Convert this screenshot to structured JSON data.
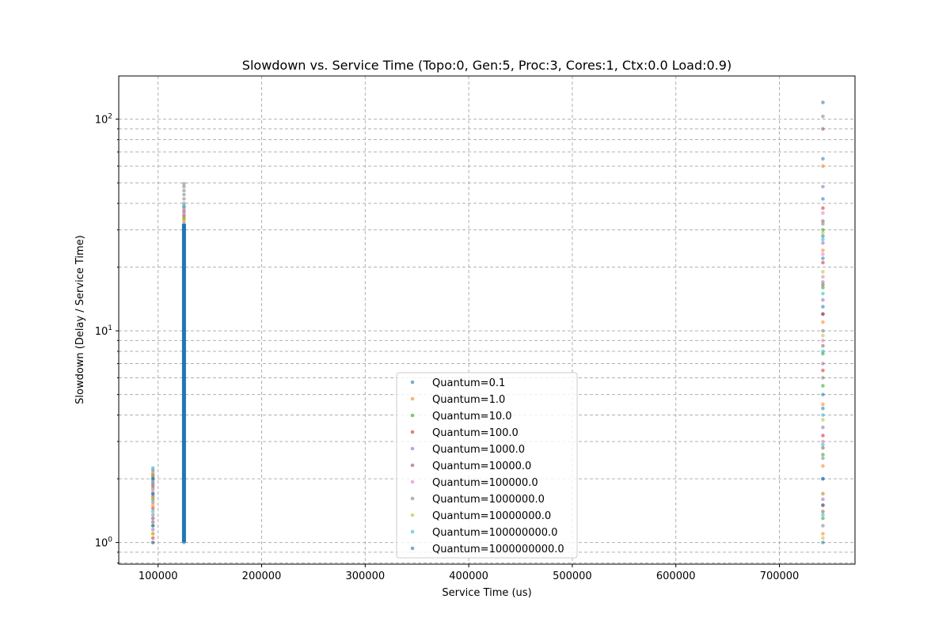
{
  "chart_data": {
    "type": "scatter",
    "title": "Slowdown vs. Service Time (Topo:0, Gen:5, Proc:3, Cores:1, Ctx:0.0 Load:0.9)",
    "xlabel": "Service Time (us)",
    "ylabel": "Slowdown (Delay / Service Time)",
    "xlim": [
      62000,
      773000
    ],
    "ylim": [
      0.79,
      160
    ],
    "yscale": "log",
    "grid": true,
    "legend_position": "lower-center",
    "x_ticks": [
      {
        "value": 100000,
        "label": "100000"
      },
      {
        "value": 200000,
        "label": "200000"
      },
      {
        "value": 300000,
        "label": "300000"
      },
      {
        "value": 400000,
        "label": "400000"
      },
      {
        "value": 500000,
        "label": "500000"
      },
      {
        "value": 600000,
        "label": "600000"
      },
      {
        "value": 700000,
        "label": "700000"
      }
    ],
    "y_ticks": [
      {
        "value": 1,
        "base": "10",
        "exp": "0"
      },
      {
        "value": 10,
        "base": "10",
        "exp": "1"
      },
      {
        "value": 100,
        "base": "10",
        "exp": "2"
      }
    ],
    "series": [
      {
        "name": "Quantum=0.1",
        "color": "#1f77b4",
        "points": [
          [
            95000,
            1.0
          ],
          [
            95000,
            1.3
          ],
          [
            95000,
            1.7
          ],
          [
            95000,
            2.1
          ],
          [
            125000,
            1.0
          ],
          [
            125000,
            3.0
          ],
          [
            125000,
            10.0
          ],
          [
            125000,
            30.0
          ],
          [
            742000,
            1.0
          ],
          [
            742000,
            2.0
          ],
          [
            742000,
            5.0
          ],
          [
            742000,
            12.0
          ],
          [
            742000,
            28.0
          ],
          [
            742000,
            65.0
          ],
          [
            742000,
            120.0
          ]
        ]
      },
      {
        "name": "Quantum=1.0",
        "color": "#ff7f0e",
        "points": [
          [
            95000,
            1.1
          ],
          [
            95000,
            1.5
          ],
          [
            95000,
            1.9
          ],
          [
            125000,
            33.0
          ],
          [
            742000,
            1.1
          ],
          [
            742000,
            2.3
          ],
          [
            742000,
            4.5
          ],
          [
            742000,
            11.0
          ],
          [
            742000,
            24.0
          ],
          [
            742000,
            60.0
          ]
        ]
      },
      {
        "name": "Quantum=10.0",
        "color": "#2ca02c",
        "points": [
          [
            95000,
            1.2
          ],
          [
            95000,
            1.6
          ],
          [
            95000,
            2.0
          ],
          [
            125000,
            34.0
          ],
          [
            742000,
            1.3
          ],
          [
            742000,
            2.6
          ],
          [
            742000,
            5.5
          ],
          [
            742000,
            7.8
          ],
          [
            742000,
            16.0
          ],
          [
            742000,
            30.0
          ]
        ]
      },
      {
        "name": "Quantum=100.0",
        "color": "#d62728",
        "points": [
          [
            95000,
            1.05
          ],
          [
            95000,
            1.45
          ],
          [
            95000,
            1.85
          ],
          [
            125000,
            35.0
          ],
          [
            742000,
            1.5
          ],
          [
            742000,
            3.2
          ],
          [
            742000,
            6.5
          ],
          [
            742000,
            12.0
          ],
          [
            742000,
            21.0
          ],
          [
            742000,
            38.0
          ]
        ]
      },
      {
        "name": "Quantum=1000.0",
        "color": "#9467bd",
        "points": [
          [
            95000,
            1.15
          ],
          [
            95000,
            1.55
          ],
          [
            95000,
            1.95
          ],
          [
            125000,
            36.0
          ],
          [
            742000,
            1.6
          ],
          [
            742000,
            3.5
          ],
          [
            742000,
            7.0
          ],
          [
            742000,
            14.0
          ],
          [
            742000,
            26.0
          ],
          [
            742000,
            48.0
          ]
        ]
      },
      {
        "name": "Quantum=10000.0",
        "color": "#8c564b",
        "points": [
          [
            95000,
            1.25
          ],
          [
            95000,
            1.65
          ],
          [
            95000,
            2.05
          ],
          [
            125000,
            37.0
          ],
          [
            742000,
            1.4
          ],
          [
            742000,
            2.8
          ],
          [
            742000,
            8.5
          ],
          [
            742000,
            16.5
          ],
          [
            742000,
            33.0
          ],
          [
            742000,
            90.0
          ]
        ]
      },
      {
        "name": "Quantum=100000.0",
        "color": "#e377c2",
        "points": [
          [
            95000,
            1.3
          ],
          [
            95000,
            1.75
          ],
          [
            95000,
            2.15
          ],
          [
            125000,
            38.0
          ],
          [
            742000,
            1.7
          ],
          [
            742000,
            3.0
          ],
          [
            742000,
            9.0
          ],
          [
            742000,
            18.0
          ],
          [
            742000,
            23.0
          ],
          [
            742000,
            36.0
          ]
        ]
      },
      {
        "name": "Quantum=1000000.0",
        "color": "#7f7f7f",
        "points": [
          [
            95000,
            1.0
          ],
          [
            95000,
            1.35
          ],
          [
            95000,
            1.8
          ],
          [
            95000,
            2.2
          ],
          [
            125000,
            38.5
          ],
          [
            125000,
            40.0
          ],
          [
            125000,
            42.0
          ],
          [
            125000,
            44.0
          ],
          [
            125000,
            46.0
          ],
          [
            125000,
            48.0
          ],
          [
            125000,
            49.5
          ],
          [
            742000,
            1.2
          ],
          [
            742000,
            2.5
          ],
          [
            742000,
            6.0
          ],
          [
            742000,
            10.0
          ],
          [
            742000,
            17.0
          ],
          [
            742000,
            32.0
          ],
          [
            742000,
            103.0
          ]
        ]
      },
      {
        "name": "Quantum=10000000.0",
        "color": "#bcbd22",
        "points": [
          [
            95000,
            1.1
          ],
          [
            95000,
            1.6
          ],
          [
            95000,
            2.1
          ],
          [
            125000,
            33.5
          ],
          [
            742000,
            1.05
          ],
          [
            742000,
            1.7
          ],
          [
            742000,
            3.8
          ],
          [
            742000,
            9.5
          ],
          [
            742000,
            19.0
          ],
          [
            742000,
            29.0
          ]
        ]
      },
      {
        "name": "Quantum=100000000.0",
        "color": "#17becf",
        "points": [
          [
            95000,
            1.4
          ],
          [
            95000,
            1.9
          ],
          [
            95000,
            2.25
          ],
          [
            125000,
            39.0
          ],
          [
            742000,
            1.35
          ],
          [
            742000,
            2.9
          ],
          [
            742000,
            4.0
          ],
          [
            742000,
            8.0
          ],
          [
            742000,
            15.0
          ],
          [
            742000,
            27.0
          ]
        ]
      },
      {
        "name": "Quantum=1000000000.0",
        "color": "#1f77b4",
        "points": [
          [
            95000,
            1.2
          ],
          [
            95000,
            1.7
          ],
          [
            95000,
            2.0
          ],
          [
            125000,
            32.0
          ],
          [
            742000,
            1.5
          ],
          [
            742000,
            2.0
          ],
          [
            742000,
            4.3
          ],
          [
            742000,
            13.0
          ],
          [
            742000,
            22.0
          ],
          [
            742000,
            42.0
          ]
        ]
      }
    ],
    "dense_column": {
      "x": 125000,
      "y_from": 1.0,
      "y_to": 32.0,
      "color": "#1f77b4"
    }
  }
}
